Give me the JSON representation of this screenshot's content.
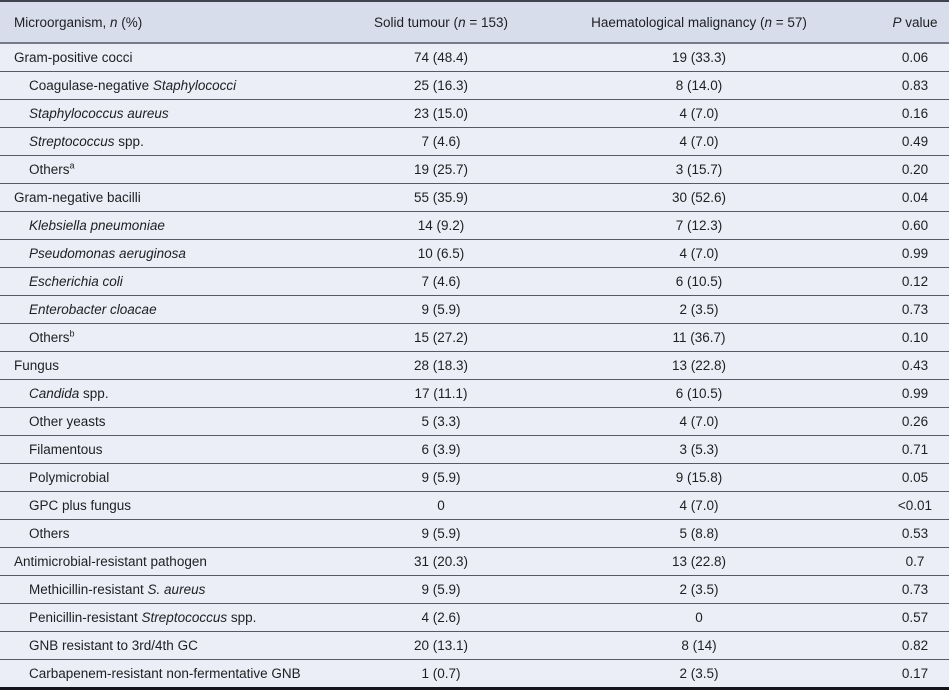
{
  "colors": {
    "header_bg": "#d8ddec",
    "row_bg": "#ebeef6",
    "row_rule": "#565a64",
    "header_rule": "#747a89",
    "top_border": "#3f434e",
    "bottom_border": "#15161b",
    "text": "#1e1f22"
  },
  "table": {
    "columns": [
      {
        "key": "name",
        "segments": [
          {
            "t": "Microorganism, "
          },
          {
            "t": "n",
            "i": true
          },
          {
            "t": " (%)"
          }
        ]
      },
      {
        "key": "solid",
        "segments": [
          {
            "t": "Solid tumour ("
          },
          {
            "t": "n",
            "i": true
          },
          {
            "t": " = 153)"
          }
        ]
      },
      {
        "key": "haem",
        "segments": [
          {
            "t": "Haematological malignancy ("
          },
          {
            "t": "n",
            "i": true
          },
          {
            "t": " = 57)"
          }
        ]
      },
      {
        "key": "p",
        "segments": [
          {
            "t": "P",
            "i": true
          },
          {
            "t": " value"
          }
        ]
      }
    ],
    "rows": [
      {
        "level": 0,
        "name": [
          {
            "t": "Gram-positive cocci"
          }
        ],
        "solid": "74 (48.4)",
        "haem": "19 (33.3)",
        "p": "0.06"
      },
      {
        "level": 1,
        "name": [
          {
            "t": "Coagulase-negative "
          },
          {
            "t": "Staphylococci",
            "i": true
          }
        ],
        "solid": "25 (16.3)",
        "haem": "8 (14.0)",
        "p": "0.83"
      },
      {
        "level": 1,
        "name": [
          {
            "t": "Staphylococcus aureus",
            "i": true
          }
        ],
        "solid": "23 (15.0)",
        "haem": "4 (7.0)",
        "p": "0.16"
      },
      {
        "level": 1,
        "name": [
          {
            "t": "Streptococcus",
            "i": true
          },
          {
            "t": " spp."
          }
        ],
        "solid": "7 (4.6)",
        "haem": "4 (7.0)",
        "p": "0.49"
      },
      {
        "level": 1,
        "name": [
          {
            "t": "Others"
          },
          {
            "t": "a",
            "sup": true
          }
        ],
        "solid": "19 (25.7)",
        "haem": "3 (15.7)",
        "p": "0.20"
      },
      {
        "level": 0,
        "name": [
          {
            "t": "Gram-negative bacilli"
          }
        ],
        "solid": "55 (35.9)",
        "haem": "30 (52.6)",
        "p": "0.04"
      },
      {
        "level": 1,
        "name": [
          {
            "t": "Klebsiella pneumoniae",
            "i": true
          }
        ],
        "solid": "14 (9.2)",
        "haem": "7 (12.3)",
        "p": "0.60"
      },
      {
        "level": 1,
        "name": [
          {
            "t": "Pseudomonas aeruginosa",
            "i": true
          }
        ],
        "solid": "10 (6.5)",
        "haem": "4 (7.0)",
        "p": "0.99"
      },
      {
        "level": 1,
        "name": [
          {
            "t": "Escherichia coli",
            "i": true
          }
        ],
        "solid": "7 (4.6)",
        "haem": "6 (10.5)",
        "p": "0.12"
      },
      {
        "level": 1,
        "name": [
          {
            "t": "Enterobacter cloacae",
            "i": true
          }
        ],
        "solid": "9 (5.9)",
        "haem": "2 (3.5)",
        "p": "0.73"
      },
      {
        "level": 1,
        "name": [
          {
            "t": "Others"
          },
          {
            "t": "b",
            "sup": true
          }
        ],
        "solid": "15 (27.2)",
        "haem": "11 (36.7)",
        "p": "0.10"
      },
      {
        "level": 0,
        "name": [
          {
            "t": "Fungus"
          }
        ],
        "solid": "28 (18.3)",
        "haem": "13 (22.8)",
        "p": "0.43"
      },
      {
        "level": 1,
        "name": [
          {
            "t": "Candida",
            "i": true
          },
          {
            "t": " spp."
          }
        ],
        "solid": "17 (11.1)",
        "haem": "6 (10.5)",
        "p": "0.99"
      },
      {
        "level": 1,
        "name": [
          {
            "t": "Other yeasts"
          }
        ],
        "solid": "5 (3.3)",
        "haem": "4 (7.0)",
        "p": "0.26"
      },
      {
        "level": 1,
        "name": [
          {
            "t": "Filamentous"
          }
        ],
        "solid": "6 (3.9)",
        "haem": "3 (5.3)",
        "p": "0.71"
      },
      {
        "level": 1,
        "name": [
          {
            "t": "Polymicrobial"
          }
        ],
        "solid": "9 (5.9)",
        "haem": "9 (15.8)",
        "p": "0.05"
      },
      {
        "level": 1,
        "name": [
          {
            "t": "GPC plus fungus"
          }
        ],
        "solid": "0",
        "haem": "4 (7.0)",
        "p": "<0.01"
      },
      {
        "level": 1,
        "name": [
          {
            "t": "Others"
          }
        ],
        "solid": "9 (5.9)",
        "haem": "5 (8.8)",
        "p": "0.53"
      },
      {
        "level": 0,
        "name": [
          {
            "t": "Antimicrobial-resistant pathogen"
          }
        ],
        "solid": "31 (20.3)",
        "haem": "13 (22.8)",
        "p": "0.7"
      },
      {
        "level": 1,
        "name": [
          {
            "t": "Methicillin-resistant "
          },
          {
            "t": "S. aureus",
            "i": true
          }
        ],
        "solid": "9 (5.9)",
        "haem": "2 (3.5)",
        "p": "0.73"
      },
      {
        "level": 1,
        "name": [
          {
            "t": "Penicillin-resistant "
          },
          {
            "t": "Streptococcus",
            "i": true
          },
          {
            "t": " spp."
          }
        ],
        "solid": "4 (2.6)",
        "haem": "0",
        "p": "0.57"
      },
      {
        "level": 1,
        "name": [
          {
            "t": "GNB resistant to 3rd/4th GC"
          }
        ],
        "solid": "20 (13.1)",
        "haem": "8 (14)",
        "p": "0.82"
      },
      {
        "level": 1,
        "name": [
          {
            "t": "Carbapenem-resistant non-fermentative GNB"
          }
        ],
        "solid": "1 (0.7)",
        "haem": "2 (3.5)",
        "p": "0.17"
      }
    ]
  }
}
